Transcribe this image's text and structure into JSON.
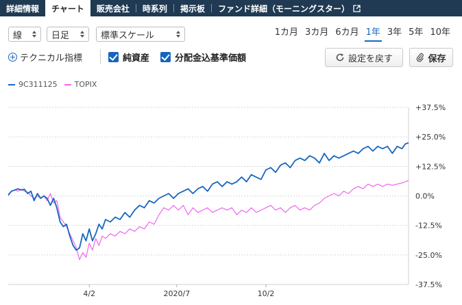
{
  "tabs": [
    {
      "label": "詳細情報",
      "active": false
    },
    {
      "label": "チャート",
      "active": true
    },
    {
      "label": "販売会社",
      "active": false
    },
    {
      "label": "時系列",
      "active": false
    },
    {
      "label": "掲示板",
      "active": false
    },
    {
      "label": "ファンド詳細（モーニングスター）",
      "active": false,
      "external": true
    }
  ],
  "controls": {
    "line_type": "線",
    "interval": "日足",
    "scale": "標準スケール",
    "periods": [
      "1カ月",
      "3カ月",
      "6カ月",
      "1年",
      "3年",
      "5年",
      "10年"
    ],
    "active_period": "1年",
    "technical_label": "テクニカル指標",
    "net_assets_label": "純資産",
    "net_assets_checked": true,
    "dividend_label": "分配金込基準価額",
    "dividend_checked": true,
    "reset_label": "設定を戻す",
    "save_label": "保存"
  },
  "colors": {
    "fund": "#1565c0",
    "topix": "#ee66ee",
    "accent": "#1565c0",
    "tabbar": "#1f3a52"
  },
  "chart_data": {
    "type": "line",
    "x_tick_labels": [
      "4/2",
      "2020/7",
      "10/2"
    ],
    "y_tick_labels": [
      "+37.5%",
      "+25.0%",
      "+12.5%",
      "0.0%",
      "-12.5%",
      "-25.0%",
      "-37.5%"
    ],
    "ylim": [
      -37.5,
      37.5
    ],
    "y_unit": "%",
    "grid": true,
    "legend_position": "top-left",
    "x_range": [
      0,
      247
    ],
    "x_tick_positions": [
      50,
      104,
      159
    ],
    "series": [
      {
        "name": "9C311125",
        "points": [
          [
            0,
            0.5
          ],
          [
            2,
            2
          ],
          [
            4,
            2.5
          ],
          [
            6,
            3
          ],
          [
            8,
            2.5
          ],
          [
            10,
            2.8
          ],
          [
            12,
            1
          ],
          [
            14,
            2
          ],
          [
            16,
            -2
          ],
          [
            18,
            1
          ],
          [
            20,
            -1
          ],
          [
            22,
            0
          ],
          [
            24,
            -1
          ],
          [
            26,
            -4
          ],
          [
            28,
            -1
          ],
          [
            30,
            -5
          ],
          [
            32,
            -11
          ],
          [
            34,
            -13
          ],
          [
            36,
            -12
          ],
          [
            38,
            -17
          ],
          [
            40,
            -21
          ],
          [
            42,
            -23
          ],
          [
            44,
            -22
          ],
          [
            46,
            -16
          ],
          [
            48,
            -19
          ],
          [
            50,
            -14
          ],
          [
            52,
            -19
          ],
          [
            54,
            -16
          ],
          [
            56,
            -12
          ],
          [
            58,
            -14
          ],
          [
            60,
            -10
          ],
          [
            63,
            -11
          ],
          [
            66,
            -9
          ],
          [
            69,
            -10
          ],
          [
            72,
            -7
          ],
          [
            75,
            -9
          ],
          [
            78,
            -6
          ],
          [
            81,
            -4
          ],
          [
            84,
            -5
          ],
          [
            87,
            -2
          ],
          [
            90,
            -3
          ],
          [
            93,
            -1
          ],
          [
            96,
            0
          ],
          [
            99,
            1
          ],
          [
            102,
            -1
          ],
          [
            105,
            1
          ],
          [
            108,
            2
          ],
          [
            111,
            3
          ],
          [
            114,
            1
          ],
          [
            117,
            3
          ],
          [
            120,
            4
          ],
          [
            123,
            2
          ],
          [
            126,
            5
          ],
          [
            129,
            6
          ],
          [
            132,
            4
          ],
          [
            135,
            6
          ],
          [
            138,
            5
          ],
          [
            141,
            6
          ],
          [
            144,
            8
          ],
          [
            147,
            6
          ],
          [
            150,
            9
          ],
          [
            153,
            8
          ],
          [
            156,
            7
          ],
          [
            159,
            11
          ],
          [
            162,
            12
          ],
          [
            165,
            10
          ],
          [
            168,
            13
          ],
          [
            171,
            14
          ],
          [
            174,
            12
          ],
          [
            177,
            15
          ],
          [
            180,
            16
          ],
          [
            183,
            15
          ],
          [
            186,
            17
          ],
          [
            189,
            16
          ],
          [
            192,
            14
          ],
          [
            195,
            18
          ],
          [
            198,
            15
          ],
          [
            201,
            17
          ],
          [
            204,
            16
          ],
          [
            207,
            17
          ],
          [
            210,
            18
          ],
          [
            213,
            19
          ],
          [
            216,
            18
          ],
          [
            219,
            20
          ],
          [
            222,
            21
          ],
          [
            225,
            19
          ],
          [
            228,
            21
          ],
          [
            231,
            20
          ],
          [
            234,
            21
          ],
          [
            237,
            18
          ],
          [
            240,
            21
          ],
          [
            243,
            20
          ],
          [
            245,
            22
          ],
          [
            247,
            22.5
          ]
        ]
      },
      {
        "name": "TOPIX",
        "points": [
          [
            0,
            0
          ],
          [
            2,
            2
          ],
          [
            4,
            2.5
          ],
          [
            6,
            2
          ],
          [
            8,
            2.8
          ],
          [
            10,
            2
          ],
          [
            12,
            1.5
          ],
          [
            14,
            0
          ],
          [
            16,
            -1
          ],
          [
            18,
            0
          ],
          [
            20,
            -1
          ],
          [
            22,
            0
          ],
          [
            24,
            -2
          ],
          [
            26,
            1
          ],
          [
            28,
            -3
          ],
          [
            30,
            -2
          ],
          [
            32,
            -9
          ],
          [
            34,
            -11
          ],
          [
            36,
            -13
          ],
          [
            38,
            -16
          ],
          [
            40,
            -19
          ],
          [
            42,
            -22
          ],
          [
            44,
            -27
          ],
          [
            46,
            -24
          ],
          [
            48,
            -26
          ],
          [
            50,
            -20
          ],
          [
            52,
            -23
          ],
          [
            54,
            -18
          ],
          [
            56,
            -21
          ],
          [
            58,
            -17
          ],
          [
            60,
            -18
          ],
          [
            63,
            -16
          ],
          [
            66,
            -17
          ],
          [
            69,
            -15
          ],
          [
            72,
            -16
          ],
          [
            75,
            -14
          ],
          [
            78,
            -15
          ],
          [
            81,
            -13
          ],
          [
            84,
            -14
          ],
          [
            87,
            -11
          ],
          [
            90,
            -12
          ],
          [
            93,
            -8
          ],
          [
            96,
            -5
          ],
          [
            99,
            -6
          ],
          [
            102,
            -4
          ],
          [
            105,
            -6
          ],
          [
            108,
            -4
          ],
          [
            111,
            -8
          ],
          [
            114,
            -5
          ],
          [
            117,
            -7
          ],
          [
            120,
            -6
          ],
          [
            123,
            -5
          ],
          [
            126,
            -7
          ],
          [
            129,
            -6
          ],
          [
            132,
            -5
          ],
          [
            135,
            -6
          ],
          [
            138,
            -5
          ],
          [
            141,
            -8
          ],
          [
            144,
            -6
          ],
          [
            147,
            -7
          ],
          [
            150,
            -5
          ],
          [
            153,
            -7
          ],
          [
            156,
            -6
          ],
          [
            159,
            -5
          ],
          [
            162,
            -4
          ],
          [
            165,
            -6
          ],
          [
            168,
            -5
          ],
          [
            171,
            -7
          ],
          [
            174,
            -5
          ],
          [
            177,
            -4
          ],
          [
            180,
            -6
          ],
          [
            183,
            -5
          ],
          [
            186,
            -6
          ],
          [
            189,
            -4
          ],
          [
            192,
            -3
          ],
          [
            195,
            -1
          ],
          [
            198,
            0
          ],
          [
            201,
            1
          ],
          [
            204,
            0
          ],
          [
            207,
            2
          ],
          [
            210,
            1
          ],
          [
            213,
            3
          ],
          [
            216,
            4
          ],
          [
            219,
            3
          ],
          [
            222,
            5
          ],
          [
            225,
            4
          ],
          [
            228,
            5
          ],
          [
            231,
            4
          ],
          [
            234,
            5
          ],
          [
            237,
            4.5
          ],
          [
            240,
            5
          ],
          [
            243,
            5.5
          ],
          [
            245,
            6
          ],
          [
            247,
            6.5
          ]
        ]
      }
    ]
  }
}
